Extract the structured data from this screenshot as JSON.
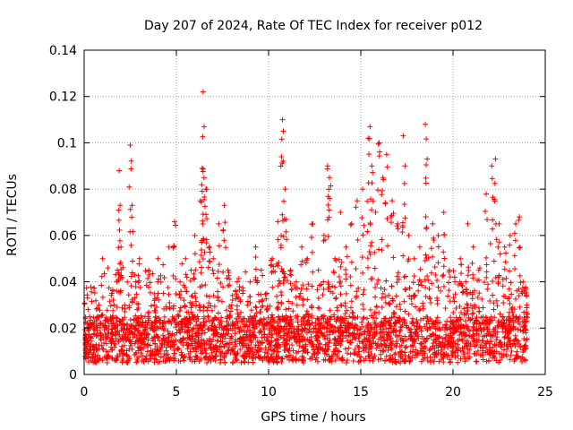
{
  "chart_data": {
    "type": "scatter",
    "title": "Day 207 of 2024, Rate Of TEC Index for receiver p012",
    "xlabel": "GPS time / hours",
    "ylabel": "ROTI / TECUs",
    "xlim": [
      0,
      25
    ],
    "ylim": [
      0,
      0.14
    ],
    "x_ticks": [
      0,
      5,
      10,
      15,
      20,
      25
    ],
    "x_tick_labels": [
      "0",
      "5",
      "10",
      "15",
      "20",
      "25"
    ],
    "y_ticks": [
      0,
      0.02,
      0.04,
      0.06,
      0.08,
      0.1,
      0.12,
      0.14
    ],
    "y_tick_labels": [
      "0",
      "0.02",
      "0.04",
      "0.06",
      "0.08",
      "0.1",
      "0.12",
      "0.14"
    ],
    "grid": true,
    "marker": "plus",
    "color": "#ff0000",
    "series": [
      {
        "name": "ROTI",
        "points": [
          [
            0.1,
            0.015
          ],
          [
            0.3,
            0.025
          ],
          [
            0.5,
            0.012
          ],
          [
            0.8,
            0.03
          ],
          [
            1.0,
            0.05
          ],
          [
            1.2,
            0.02
          ],
          [
            1.5,
            0.035
          ],
          [
            1.8,
            0.045
          ],
          [
            1.9,
            0.088
          ],
          [
            1.95,
            0.073
          ],
          [
            2.0,
            0.055
          ],
          [
            2.2,
            0.03
          ],
          [
            2.5,
            0.099
          ],
          [
            2.6,
            0.073
          ],
          [
            2.8,
            0.04
          ],
          [
            3.0,
            0.05
          ],
          [
            3.3,
            0.025
          ],
          [
            3.5,
            0.045
          ],
          [
            3.8,
            0.03
          ],
          [
            4.0,
            0.05
          ],
          [
            4.3,
            0.035
          ],
          [
            4.6,
            0.055
          ],
          [
            4.9,
            0.066
          ],
          [
            5.2,
            0.04
          ],
          [
            5.5,
            0.05
          ],
          [
            5.8,
            0.045
          ],
          [
            6.0,
            0.06
          ],
          [
            6.3,
            0.075
          ],
          [
            6.4,
            0.089
          ],
          [
            6.45,
            0.122
          ],
          [
            6.5,
            0.107
          ],
          [
            6.6,
            0.08
          ],
          [
            6.8,
            0.055
          ],
          [
            7.0,
            0.05
          ],
          [
            7.3,
            0.065
          ],
          [
            7.6,
            0.073
          ],
          [
            7.8,
            0.045
          ],
          [
            8.0,
            0.03
          ],
          [
            8.3,
            0.04
          ],
          [
            8.6,
            0.035
          ],
          [
            9.0,
            0.04
          ],
          [
            9.3,
            0.055
          ],
          [
            9.6,
            0.045
          ],
          [
            9.9,
            0.035
          ],
          [
            10.2,
            0.05
          ],
          [
            10.5,
            0.066
          ],
          [
            10.7,
            0.094
          ],
          [
            10.75,
            0.11
          ],
          [
            10.8,
            0.105
          ],
          [
            10.9,
            0.08
          ],
          [
            11.2,
            0.045
          ],
          [
            11.5,
            0.04
          ],
          [
            11.8,
            0.055
          ],
          [
            12.1,
            0.05
          ],
          [
            12.4,
            0.065
          ],
          [
            12.7,
            0.045
          ],
          [
            13.0,
            0.06
          ],
          [
            13.2,
            0.09
          ],
          [
            13.3,
            0.085
          ],
          [
            13.6,
            0.05
          ],
          [
            13.9,
            0.07
          ],
          [
            14.2,
            0.055
          ],
          [
            14.5,
            0.065
          ],
          [
            14.8,
            0.075
          ],
          [
            15.1,
            0.08
          ],
          [
            15.4,
            0.102
          ],
          [
            15.5,
            0.107
          ],
          [
            15.6,
            0.09
          ],
          [
            15.8,
            0.07
          ],
          [
            16.0,
            0.1
          ],
          [
            16.2,
            0.085
          ],
          [
            16.4,
            0.095
          ],
          [
            16.7,
            0.075
          ],
          [
            17.0,
            0.065
          ],
          [
            17.3,
            0.103
          ],
          [
            17.4,
            0.09
          ],
          [
            17.6,
            0.06
          ],
          [
            17.9,
            0.05
          ],
          [
            18.2,
            0.055
          ],
          [
            18.5,
            0.108
          ],
          [
            18.6,
            0.093
          ],
          [
            18.9,
            0.065
          ],
          [
            19.2,
            0.06
          ],
          [
            19.5,
            0.07
          ],
          [
            19.8,
            0.045
          ],
          [
            20.1,
            0.04
          ],
          [
            20.4,
            0.05
          ],
          [
            20.8,
            0.065
          ],
          [
            21.1,
            0.055
          ],
          [
            21.4,
            0.045
          ],
          [
            21.8,
            0.078
          ],
          [
            22.1,
            0.09
          ],
          [
            22.3,
            0.093
          ],
          [
            22.5,
            0.065
          ],
          [
            22.8,
            0.055
          ],
          [
            23.1,
            0.06
          ],
          [
            23.4,
            0.065
          ],
          [
            23.6,
            0.068
          ],
          [
            23.8,
            0.04
          ],
          [
            24.0,
            0.03
          ]
        ]
      }
    ],
    "baseline_band": [
      0.005,
      0.025
    ]
  }
}
